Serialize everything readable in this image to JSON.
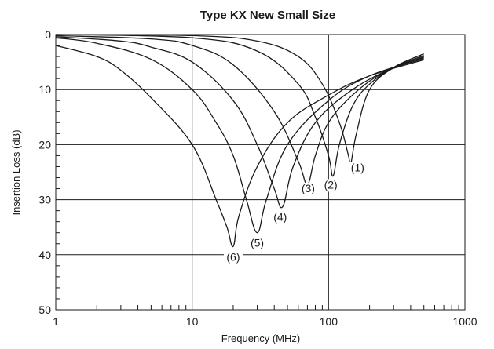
{
  "chart_data": {
    "type": "line",
    "title": "Type KX New Small Size",
    "xlabel": "Frequency (MHz)",
    "ylabel": "Insertion Loss (dB)",
    "x_scale": "log",
    "y_inverted": true,
    "xlim": [
      1,
      1000
    ],
    "ylim": [
      0,
      50
    ],
    "x_ticks": [
      1,
      10,
      100,
      1000
    ],
    "x_tick_labels": [
      "1",
      "10",
      "100",
      "1000"
    ],
    "y_ticks": [
      0,
      10,
      20,
      30,
      40,
      50
    ],
    "y_tick_labels": [
      "0",
      "10",
      "20",
      "30",
      "40",
      "50"
    ],
    "grid": true,
    "series": [
      {
        "name": "(1)",
        "x": [
          1,
          10,
          30,
          60,
          90,
          120,
          140,
          145,
          160,
          200,
          300,
          500
        ],
        "y": [
          0,
          0.2,
          1.2,
          4,
          9,
          16,
          22,
          23.7,
          18,
          10,
          6,
          3.5
        ]
      },
      {
        "name": "(2)",
        "x": [
          1,
          10,
          30,
          60,
          80,
          100,
          108,
          120,
          150,
          200,
          300,
          500
        ],
        "y": [
          0,
          0.6,
          3,
          9,
          15,
          22,
          25.7,
          20,
          13,
          9,
          6,
          3.8
        ]
      },
      {
        "name": "(3)",
        "x": [
          1,
          5,
          10,
          20,
          40,
          60,
          70,
          80,
          100,
          150,
          250,
          500
        ],
        "y": [
          0.2,
          0.8,
          2,
          5.5,
          14,
          23,
          27.2,
          22,
          16,
          11,
          7,
          4
        ]
      },
      {
        "name": "(4)",
        "x": [
          1,
          3,
          5,
          10,
          20,
          30,
          40,
          46,
          55,
          80,
          150,
          300,
          500
        ],
        "y": [
          0.4,
          1.2,
          2.3,
          5,
          12,
          20,
          28,
          31.3,
          24,
          16,
          10,
          6,
          4.2
        ]
      },
      {
        "name": "(5)",
        "x": [
          1,
          2,
          5,
          10,
          15,
          20,
          25,
          30,
          35,
          50,
          100,
          200,
          500
        ],
        "y": [
          0.6,
          1.6,
          4.5,
          10,
          16,
          22,
          30,
          36,
          30,
          20,
          12,
          7.5,
          4.4
        ]
      },
      {
        "name": "(6)",
        "x": [
          1,
          2,
          3,
          5,
          10,
          15,
          18,
          20,
          22,
          30,
          50,
          100,
          200,
          500
        ],
        "y": [
          2,
          4,
          6.5,
          11.5,
          20,
          30,
          35,
          38.5,
          33,
          24,
          16,
          11,
          7.5,
          4.6
        ]
      }
    ]
  }
}
